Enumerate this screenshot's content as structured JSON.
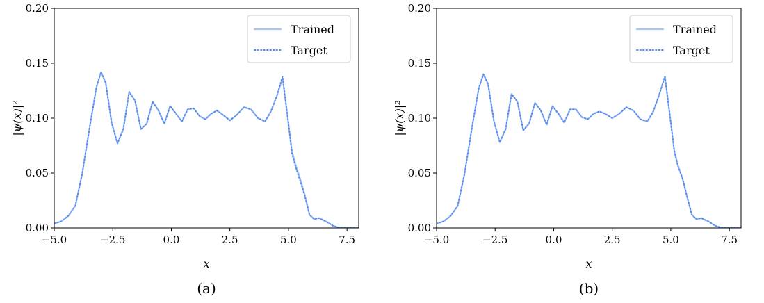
{
  "chart_data": [
    {
      "type": "line",
      "caption": "(a)",
      "xlabel": "x",
      "ylabel": "|ψ(x)|²",
      "xlim": [
        -5.0,
        8.0
      ],
      "ylim": [
        0.0,
        0.2
      ],
      "xticks": [
        "−5.0",
        "−2.5",
        "0.0",
        "2.5",
        "5.0",
        "7.5"
      ],
      "yticks": [
        "0.00",
        "0.05",
        "0.10",
        "0.15",
        "0.20"
      ],
      "legend_position": "top-right",
      "grid": false,
      "series": [
        {
          "name": "Trained",
          "style": "solid",
          "color": "#a9c4f5",
          "x": [
            -5.0,
            -4.7,
            -4.4,
            -4.1,
            -3.8,
            -3.5,
            -3.2,
            -3.0,
            -2.8,
            -2.55,
            -2.3,
            -2.05,
            -1.8,
            -1.55,
            -1.3,
            -1.05,
            -0.8,
            -0.55,
            -0.3,
            -0.05,
            0.2,
            0.45,
            0.7,
            0.95,
            1.2,
            1.45,
            1.7,
            1.95,
            2.2,
            2.5,
            2.8,
            3.1,
            3.4,
            3.7,
            4.0,
            4.25,
            4.5,
            4.75,
            5.0,
            5.15,
            5.3,
            5.5,
            5.7,
            5.9,
            6.1,
            6.3,
            6.6,
            6.9,
            7.2,
            7.5,
            8.0
          ],
          "y": [
            0.004,
            0.006,
            0.011,
            0.02,
            0.05,
            0.09,
            0.128,
            0.142,
            0.132,
            0.096,
            0.077,
            0.09,
            0.124,
            0.116,
            0.09,
            0.095,
            0.115,
            0.107,
            0.095,
            0.111,
            0.104,
            0.097,
            0.108,
            0.109,
            0.102,
            0.099,
            0.104,
            0.107,
            0.103,
            0.098,
            0.103,
            0.11,
            0.108,
            0.1,
            0.097,
            0.106,
            0.12,
            0.136,
            0.095,
            0.07,
            0.058,
            0.045,
            0.03,
            0.012,
            0.008,
            0.009,
            0.006,
            0.002,
            0.0,
            0.0,
            0.0
          ]
        },
        {
          "name": "Target",
          "style": "dotted",
          "color": "#5b8def",
          "x": [
            -5.0,
            -4.7,
            -4.4,
            -4.1,
            -3.8,
            -3.5,
            -3.2,
            -3.0,
            -2.8,
            -2.55,
            -2.3,
            -2.05,
            -1.8,
            -1.55,
            -1.3,
            -1.05,
            -0.8,
            -0.55,
            -0.3,
            -0.05,
            0.2,
            0.45,
            0.7,
            0.95,
            1.2,
            1.45,
            1.7,
            1.95,
            2.2,
            2.5,
            2.8,
            3.1,
            3.4,
            3.7,
            4.0,
            4.25,
            4.5,
            4.75,
            5.0,
            5.15,
            5.3,
            5.5,
            5.7,
            5.9,
            6.1,
            6.3,
            6.6,
            6.9,
            7.2,
            7.5,
            8.0
          ],
          "y": [
            0.004,
            0.006,
            0.011,
            0.02,
            0.05,
            0.09,
            0.128,
            0.142,
            0.132,
            0.096,
            0.077,
            0.09,
            0.124,
            0.116,
            0.09,
            0.095,
            0.115,
            0.107,
            0.095,
            0.111,
            0.104,
            0.097,
            0.108,
            0.109,
            0.102,
            0.099,
            0.104,
            0.107,
            0.103,
            0.098,
            0.103,
            0.11,
            0.108,
            0.1,
            0.097,
            0.106,
            0.12,
            0.138,
            0.095,
            0.068,
            0.056,
            0.043,
            0.029,
            0.012,
            0.008,
            0.009,
            0.006,
            0.002,
            0.0,
            0.0,
            0.0
          ]
        }
      ]
    },
    {
      "type": "line",
      "caption": "(b)",
      "xlabel": "x",
      "ylabel": "|ψ(x)|²",
      "xlim": [
        -5.0,
        8.0
      ],
      "ylim": [
        0.0,
        0.2
      ],
      "xticks": [
        "−5.0",
        "−2.5",
        "0.0",
        "2.5",
        "5.0",
        "7.5"
      ],
      "yticks": [
        "0.00",
        "0.05",
        "0.10",
        "0.15",
        "0.20"
      ],
      "legend_position": "top-right",
      "grid": false,
      "series": [
        {
          "name": "Trained",
          "style": "solid",
          "color": "#a9c4f5",
          "x": [
            -5.0,
            -4.7,
            -4.4,
            -4.1,
            -3.8,
            -3.5,
            -3.2,
            -3.0,
            -2.8,
            -2.55,
            -2.3,
            -2.05,
            -1.8,
            -1.55,
            -1.3,
            -1.05,
            -0.8,
            -0.55,
            -0.3,
            -0.05,
            0.2,
            0.45,
            0.7,
            0.95,
            1.2,
            1.45,
            1.7,
            1.95,
            2.2,
            2.5,
            2.8,
            3.1,
            3.4,
            3.7,
            4.0,
            4.25,
            4.5,
            4.75,
            5.0,
            5.15,
            5.3,
            5.5,
            5.7,
            5.9,
            6.1,
            6.3,
            6.6,
            6.9,
            7.2,
            7.5,
            8.0
          ],
          "y": [
            0.004,
            0.006,
            0.011,
            0.02,
            0.05,
            0.09,
            0.127,
            0.14,
            0.131,
            0.097,
            0.078,
            0.09,
            0.122,
            0.115,
            0.089,
            0.095,
            0.114,
            0.107,
            0.094,
            0.111,
            0.104,
            0.096,
            0.108,
            0.108,
            0.101,
            0.099,
            0.104,
            0.106,
            0.104,
            0.1,
            0.104,
            0.11,
            0.107,
            0.099,
            0.097,
            0.106,
            0.121,
            0.138,
            0.096,
            0.07,
            0.057,
            0.045,
            0.028,
            0.012,
            0.008,
            0.009,
            0.006,
            0.002,
            0.0,
            0.0,
            0.0
          ]
        },
        {
          "name": "Target",
          "style": "dotted",
          "color": "#5b8def",
          "x": [
            -5.0,
            -4.7,
            -4.4,
            -4.1,
            -3.8,
            -3.5,
            -3.2,
            -3.0,
            -2.8,
            -2.55,
            -2.3,
            -2.05,
            -1.8,
            -1.55,
            -1.3,
            -1.05,
            -0.8,
            -0.55,
            -0.3,
            -0.05,
            0.2,
            0.45,
            0.7,
            0.95,
            1.2,
            1.45,
            1.7,
            1.95,
            2.2,
            2.5,
            2.8,
            3.1,
            3.4,
            3.7,
            4.0,
            4.25,
            4.5,
            4.75,
            5.0,
            5.15,
            5.3,
            5.5,
            5.7,
            5.9,
            6.1,
            6.3,
            6.6,
            6.9,
            7.2,
            7.5,
            8.0
          ],
          "y": [
            0.004,
            0.006,
            0.011,
            0.02,
            0.05,
            0.09,
            0.127,
            0.14,
            0.131,
            0.097,
            0.078,
            0.09,
            0.122,
            0.115,
            0.089,
            0.095,
            0.114,
            0.107,
            0.094,
            0.111,
            0.104,
            0.096,
            0.108,
            0.108,
            0.101,
            0.099,
            0.104,
            0.106,
            0.104,
            0.1,
            0.104,
            0.11,
            0.107,
            0.099,
            0.097,
            0.106,
            0.121,
            0.138,
            0.096,
            0.07,
            0.057,
            0.045,
            0.028,
            0.012,
            0.008,
            0.009,
            0.006,
            0.002,
            0.0,
            0.0,
            0.0
          ]
        }
      ]
    }
  ]
}
